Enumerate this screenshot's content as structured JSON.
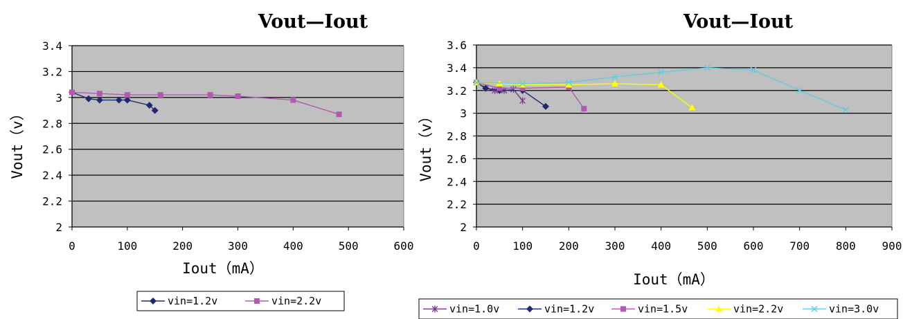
{
  "chart_data": [
    {
      "type": "line",
      "title": "Vout—Iout",
      "xlabel": "Iout（mA）",
      "ylabel": "Vout（v）",
      "xlim": [
        0,
        600
      ],
      "ylim": [
        2,
        3.4
      ],
      "xticks": [
        0,
        100,
        200,
        300,
        400,
        500,
        600
      ],
      "xtick_labels": [
        "0",
        "100",
        "200",
        "300",
        "400",
        "500",
        "600"
      ],
      "yticks": [
        2,
        2.2,
        2.4,
        2.6,
        2.8,
        3,
        3.2,
        3.4
      ],
      "ytick_labels": [
        "2",
        "2.2",
        "2.4",
        "2.6",
        "2.8",
        "3",
        "3.2",
        "3.4"
      ],
      "grid": true,
      "plot_background": "#c0c0c0",
      "legend_position": "bottom",
      "series": [
        {
          "name": "vin=1.2v",
          "color": "#1f2a6e",
          "marker": "diamond",
          "x": [
            0,
            30,
            50,
            85,
            100,
            140,
            150
          ],
          "y": [
            3.04,
            2.99,
            2.98,
            2.98,
            2.98,
            2.94,
            2.9
          ]
        },
        {
          "name": "vin=2.2v",
          "color": "#b05ab0",
          "marker": "square",
          "x": [
            0,
            50,
            100,
            160,
            250,
            300,
            400,
            483
          ],
          "y": [
            3.04,
            3.03,
            3.02,
            3.02,
            3.02,
            3.01,
            2.98,
            2.87
          ]
        }
      ]
    },
    {
      "type": "line",
      "title": "Vout—Iout",
      "xlabel": "Iout（mA）",
      "ylabel": "Vout（v）",
      "xlim": [
        0,
        900
      ],
      "ylim": [
        2,
        3.6
      ],
      "xticks": [
        0,
        100,
        200,
        300,
        400,
        500,
        600,
        700,
        800,
        900
      ],
      "xtick_labels": [
        "0",
        "100",
        "200",
        "300",
        "400",
        "500",
        "600",
        "700",
        "800",
        "900"
      ],
      "yticks": [
        2,
        2.2,
        2.4,
        2.6,
        2.8,
        3,
        3.2,
        3.4,
        3.6
      ],
      "ytick_labels": [
        "2",
        "2.2",
        "2.4",
        "2.6",
        "2.8",
        "3",
        "3.2",
        "3.4",
        "3.6"
      ],
      "grid": true,
      "plot_background": "#c0c0c0",
      "legend_position": "bottom",
      "series": [
        {
          "name": "vin=1.0v",
          "color": "#7a3a8a",
          "marker": "star",
          "x": [
            0,
            20,
            40,
            60,
            80,
            100
          ],
          "y": [
            3.27,
            3.22,
            3.2,
            3.2,
            3.21,
            3.11
          ]
        },
        {
          "name": "vin=1.2v",
          "color": "#1f2a6e",
          "marker": "diamond",
          "x": [
            0,
            20,
            50,
            100,
            150
          ],
          "y": [
            3.27,
            3.22,
            3.2,
            3.2,
            3.06
          ]
        },
        {
          "name": "vin=1.5v",
          "color": "#b05ab0",
          "marker": "square",
          "x": [
            0,
            50,
            100,
            200,
            233
          ],
          "y": [
            3.27,
            3.22,
            3.22,
            3.23,
            3.04
          ]
        },
        {
          "name": "vin=2.2v",
          "color": "#ffff00",
          "marker": "triangle",
          "x": [
            0,
            50,
            100,
            200,
            300,
            400,
            467
          ],
          "y": [
            3.27,
            3.26,
            3.25,
            3.25,
            3.26,
            3.25,
            3.05
          ]
        },
        {
          "name": "vin=3.0v",
          "color": "#66ccdd",
          "marker": "x",
          "x": [
            0,
            100,
            200,
            300,
            400,
            500,
            600,
            700,
            800
          ],
          "y": [
            3.27,
            3.26,
            3.27,
            3.32,
            3.36,
            3.4,
            3.38,
            3.2,
            3.03
          ]
        }
      ]
    }
  ]
}
